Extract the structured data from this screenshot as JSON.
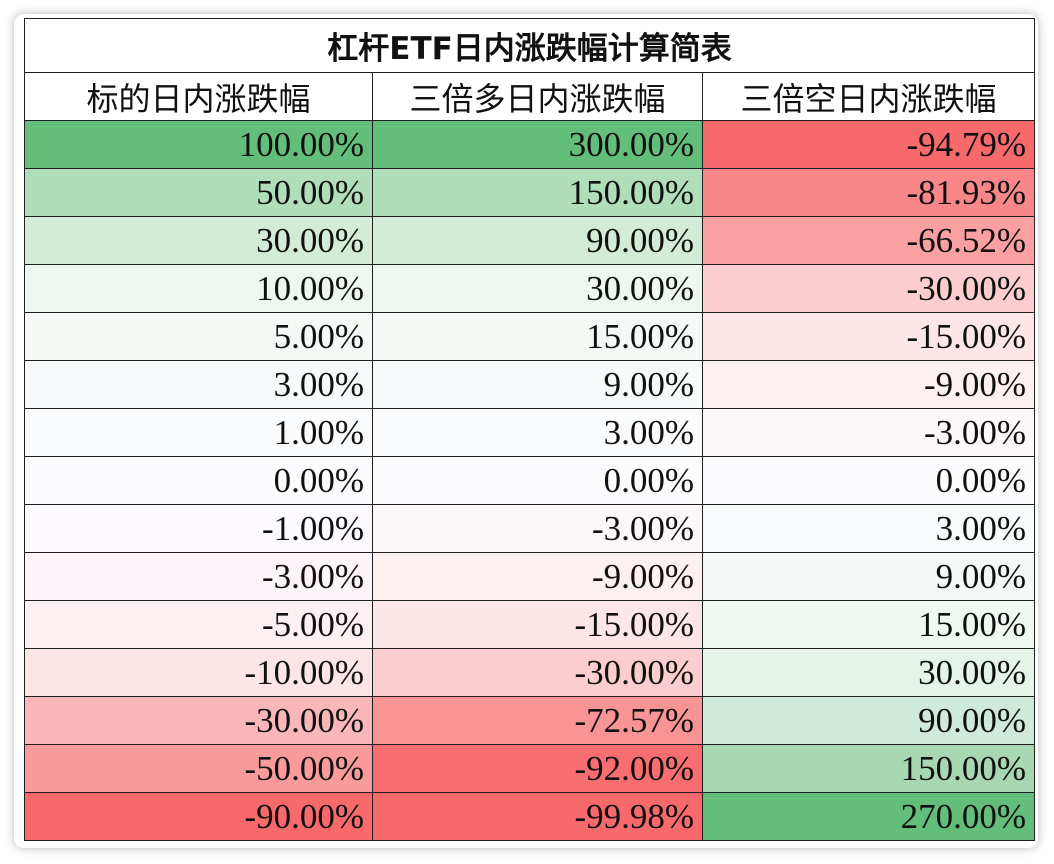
{
  "table": {
    "title": "杠杆ETF日内涨跌幅计算简表",
    "headers": [
      "标的日内涨跌幅",
      "三倍多日内涨跌幅",
      "三倍空日内涨跌幅"
    ],
    "rows": [
      {
        "cells": [
          "100.00%",
          "300.00%",
          "-94.79%"
        ],
        "colors": [
          "#63be7b",
          "#63be7b",
          "#f8696b"
        ]
      },
      {
        "cells": [
          "50.00%",
          "150.00%",
          "-81.93%"
        ],
        "colors": [
          "#b0deb9",
          "#b0deb9",
          "#f98688"
        ]
      },
      {
        "cells": [
          "30.00%",
          "90.00%",
          "-66.52%"
        ],
        "colors": [
          "#d2ecd7",
          "#d2ecd7",
          "#faa0a2"
        ]
      },
      {
        "cells": [
          "10.00%",
          "30.00%",
          "-30.00%"
        ],
        "colors": [
          "#edf7ef",
          "#edf7ef",
          "#fbcdce"
        ]
      },
      {
        "cells": [
          "5.00%",
          "15.00%",
          "-15.00%"
        ],
        "colors": [
          "#f4f9f6",
          "#f4f9f6",
          "#fce6e7"
        ]
      },
      {
        "cells": [
          "3.00%",
          "9.00%",
          "-9.00%"
        ],
        "colors": [
          "#f6fafa",
          "#f6fafa",
          "#fcf0f1"
        ]
      },
      {
        "cells": [
          "1.00%",
          "3.00%",
          "-3.00%"
        ],
        "colors": [
          "#f9fbfc",
          "#f9fbfc",
          "#fcf7f8"
        ]
      },
      {
        "cells": [
          "0.00%",
          "0.00%",
          "0.00%"
        ],
        "colors": [
          "#fcfcff",
          "#fcfcff",
          "#fcfcff"
        ]
      },
      {
        "cells": [
          "-1.00%",
          "-3.00%",
          "3.00%"
        ],
        "colors": [
          "#fcfaff",
          "#fcf7f8",
          "#f8fbfc"
        ]
      },
      {
        "cells": [
          "-3.00%",
          "-9.00%",
          "9.00%"
        ],
        "colors": [
          "#fcf4f8",
          "#fcf0f1",
          "#f4f9f7"
        ]
      },
      {
        "cells": [
          "-5.00%",
          "-15.00%",
          "15.00%"
        ],
        "colors": [
          "#fcf0f3",
          "#fce6e7",
          "#f0f8f2"
        ]
      },
      {
        "cells": [
          "-10.00%",
          "-30.00%",
          "30.00%"
        ],
        "colors": [
          "#fce5e7",
          "#fbcdce",
          "#e5f3e9"
        ]
      },
      {
        "cells": [
          "-30.00%",
          "-72.57%",
          "90.00%"
        ],
        "colors": [
          "#fab7b9",
          "#f99496",
          "#cfeadb"
        ]
      },
      {
        "cells": [
          "-50.00%",
          "-92.00%",
          "150.00%"
        ],
        "colors": [
          "#f99b9d",
          "#f86d6f",
          "#a8d8b2"
        ]
      },
      {
        "cells": [
          "-90.00%",
          "-99.98%",
          "270.00%"
        ],
        "colors": [
          "#f8696b",
          "#f8696b",
          "#63be7b"
        ]
      }
    ]
  }
}
